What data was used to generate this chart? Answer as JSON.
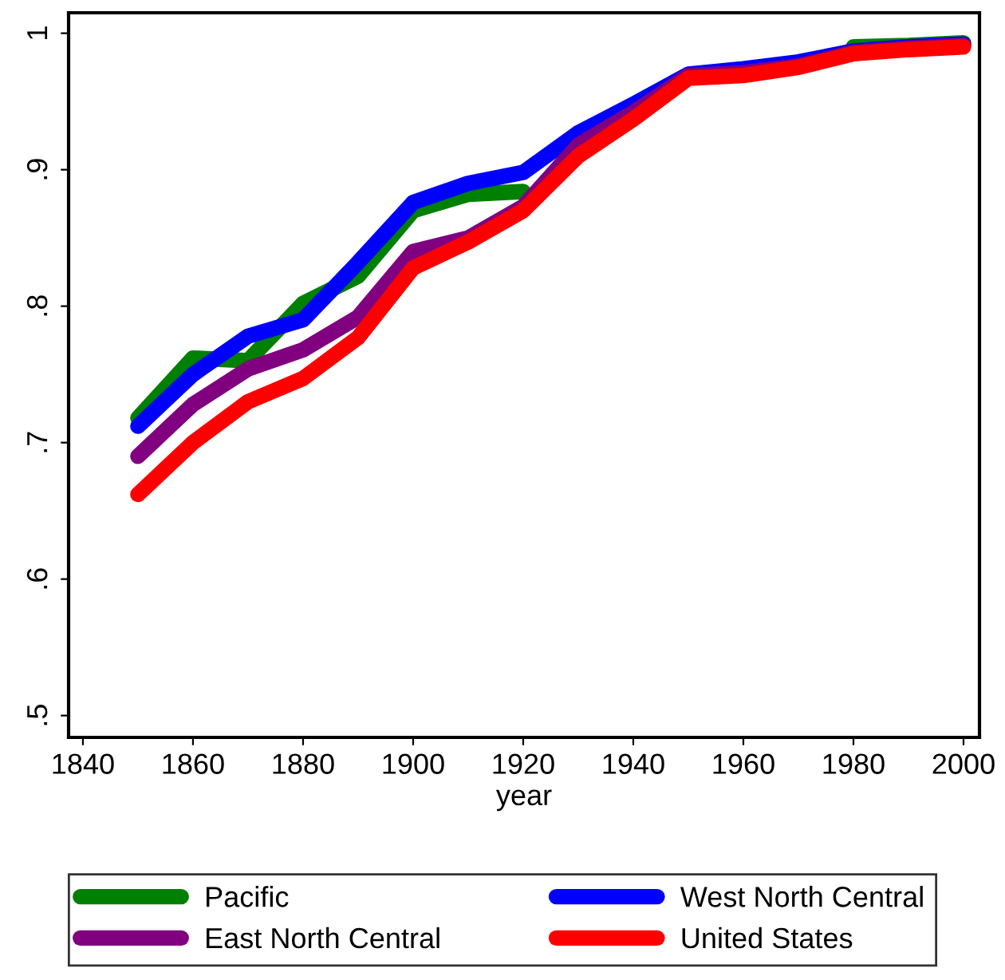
{
  "chart_data": {
    "type": "line",
    "xlabel": "year",
    "x": [
      1850,
      1860,
      1870,
      1880,
      1890,
      1900,
      1910,
      1920,
      1930,
      1940,
      1950,
      1960,
      1970,
      1980,
      1990,
      2000
    ],
    "series": [
      {
        "name": "Pacific",
        "color": "#008000",
        "values": [
          0.718,
          0.762,
          0.76,
          0.802,
          0.822,
          0.87,
          0.882,
          0.884,
          null,
          null,
          null,
          null,
          null,
          0.99,
          0.991,
          0.993
        ]
      },
      {
        "name": "West North Central",
        "color": "#0000ff",
        "values": [
          0.712,
          0.75,
          0.778,
          0.79,
          0.832,
          0.876,
          0.89,
          0.898,
          0.927,
          0.948,
          0.97,
          0.974,
          0.979,
          0.987,
          0.99,
          0.992
        ]
      },
      {
        "name": "East North Central",
        "color": "#800080",
        "values": [
          0.69,
          0.728,
          0.754,
          0.768,
          0.792,
          0.84,
          0.85,
          0.873,
          0.918,
          0.942,
          0.969,
          0.971,
          0.976,
          0.986,
          0.989,
          0.991
        ]
      },
      {
        "name": "United States",
        "color": "#ff0000",
        "values": [
          0.662,
          0.7,
          0.73,
          0.747,
          0.777,
          0.828,
          0.847,
          0.87,
          0.91,
          0.937,
          0.967,
          0.969,
          0.975,
          0.985,
          0.988,
          0.99
        ]
      }
    ],
    "xlim": [
      1837.4,
      2002.9
    ],
    "xticks": [
      1840,
      1860,
      1880,
      1900,
      1920,
      1940,
      1960,
      1980,
      2000
    ],
    "ylim": [
      0.484,
      1.015
    ],
    "yticks": [
      {
        "value": 0.5,
        "label": ".5"
      },
      {
        "value": 0.6,
        "label": ".6"
      },
      {
        "value": 0.7,
        "label": ".7"
      },
      {
        "value": 0.8,
        "label": ".8"
      },
      {
        "value": 0.9,
        "label": ".9"
      },
      {
        "value": 1,
        "label": "1"
      }
    ],
    "grid": false,
    "legend": "bottom",
    "marker": "none",
    "line_style": "solid"
  }
}
